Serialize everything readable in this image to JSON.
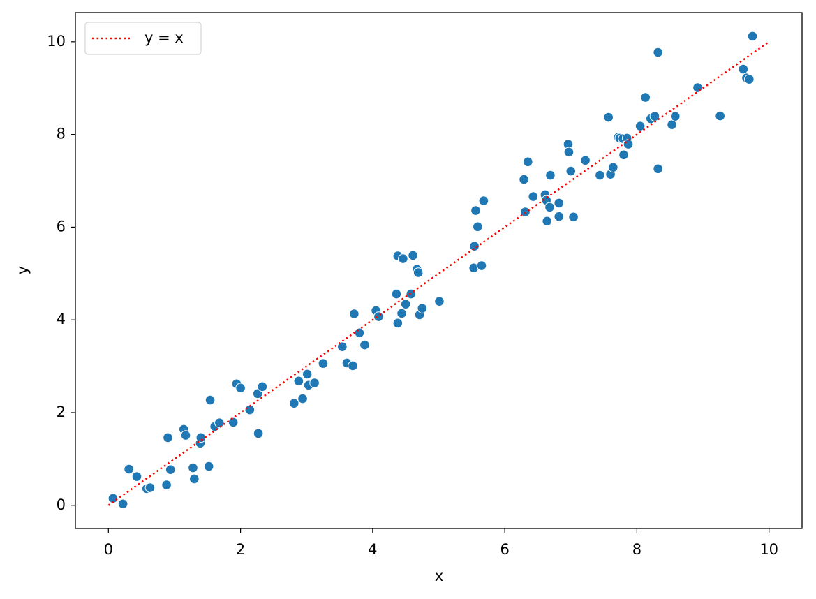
{
  "chart_data": {
    "type": "scatter",
    "xlabel": "x",
    "ylabel": "y",
    "xlim": [
      -0.5,
      10.5
    ],
    "ylim": [
      -0.5,
      10.63
    ],
    "xticks": [
      0,
      2,
      4,
      6,
      8,
      10
    ],
    "yticks": [
      0,
      2,
      4,
      6,
      8,
      10
    ],
    "grid": false,
    "legend": "upper left",
    "series": [
      {
        "type": "scatter",
        "color": "#1f77b4",
        "x": [
          0.07,
          0.22,
          0.31,
          0.43,
          0.58,
          0.63,
          0.88,
          0.9,
          0.94,
          1.14,
          1.17,
          1.28,
          1.3,
          1.39,
          1.4,
          1.52,
          1.54,
          1.61,
          1.68,
          1.89,
          1.94,
          2.0,
          2.14,
          2.26,
          2.27,
          2.33,
          2.81,
          2.88,
          2.94,
          3.01,
          3.03,
          3.12,
          3.25,
          3.54,
          3.61,
          3.7,
          3.72,
          3.8,
          3.88,
          4.05,
          4.09,
          4.36,
          4.38,
          4.38,
          4.44,
          4.46,
          4.5,
          4.58,
          4.61,
          4.67,
          4.69,
          4.71,
          4.75,
          5.01,
          5.53,
          5.54,
          5.56,
          5.59,
          5.65,
          5.68,
          6.29,
          6.31,
          6.35,
          6.43,
          6.61,
          6.63,
          6.64,
          6.68,
          6.69,
          6.82,
          6.82,
          6.96,
          6.97,
          7.0,
          7.04,
          7.22,
          7.44,
          7.57,
          7.6,
          7.64,
          7.72,
          7.74,
          7.79,
          7.8,
          7.85,
          7.87,
          8.05,
          8.13,
          8.21,
          8.27,
          8.32,
          8.32,
          8.53,
          8.58,
          8.92,
          9.26,
          9.61,
          9.66,
          9.7,
          9.75
        ],
        "values": [
          0.15,
          0.03,
          0.78,
          0.62,
          0.36,
          0.38,
          0.44,
          1.46,
          0.77,
          1.64,
          1.51,
          0.81,
          0.57,
          1.34,
          1.46,
          0.84,
          2.27,
          1.7,
          1.78,
          1.79,
          2.62,
          2.53,
          2.06,
          2.41,
          1.55,
          2.56,
          2.2,
          2.68,
          2.3,
          2.83,
          2.59,
          2.64,
          3.06,
          3.42,
          3.07,
          3.01,
          4.13,
          3.72,
          3.46,
          4.2,
          4.07,
          4.56,
          5.38,
          3.93,
          4.14,
          5.32,
          4.34,
          4.56,
          5.39,
          5.09,
          5.02,
          4.11,
          4.25,
          4.4,
          5.12,
          5.59,
          6.36,
          6.01,
          5.17,
          6.57,
          7.03,
          6.33,
          7.41,
          6.66,
          6.7,
          6.58,
          6.13,
          6.43,
          7.12,
          6.52,
          6.23,
          7.79,
          7.62,
          7.21,
          6.22,
          7.44,
          7.12,
          8.37,
          7.14,
          7.29,
          7.94,
          7.92,
          7.91,
          7.56,
          7.92,
          7.79,
          8.18,
          8.8,
          8.34,
          8.39,
          7.26,
          9.77,
          8.21,
          8.39,
          9.01,
          8.4,
          9.41,
          9.22,
          9.19,
          10.12
        ]
      },
      {
        "type": "line",
        "name": "y = x",
        "color": "#ff0000",
        "linestyle": "dotted",
        "x": [
          0,
          10
        ],
        "values": [
          0,
          10
        ]
      }
    ]
  }
}
